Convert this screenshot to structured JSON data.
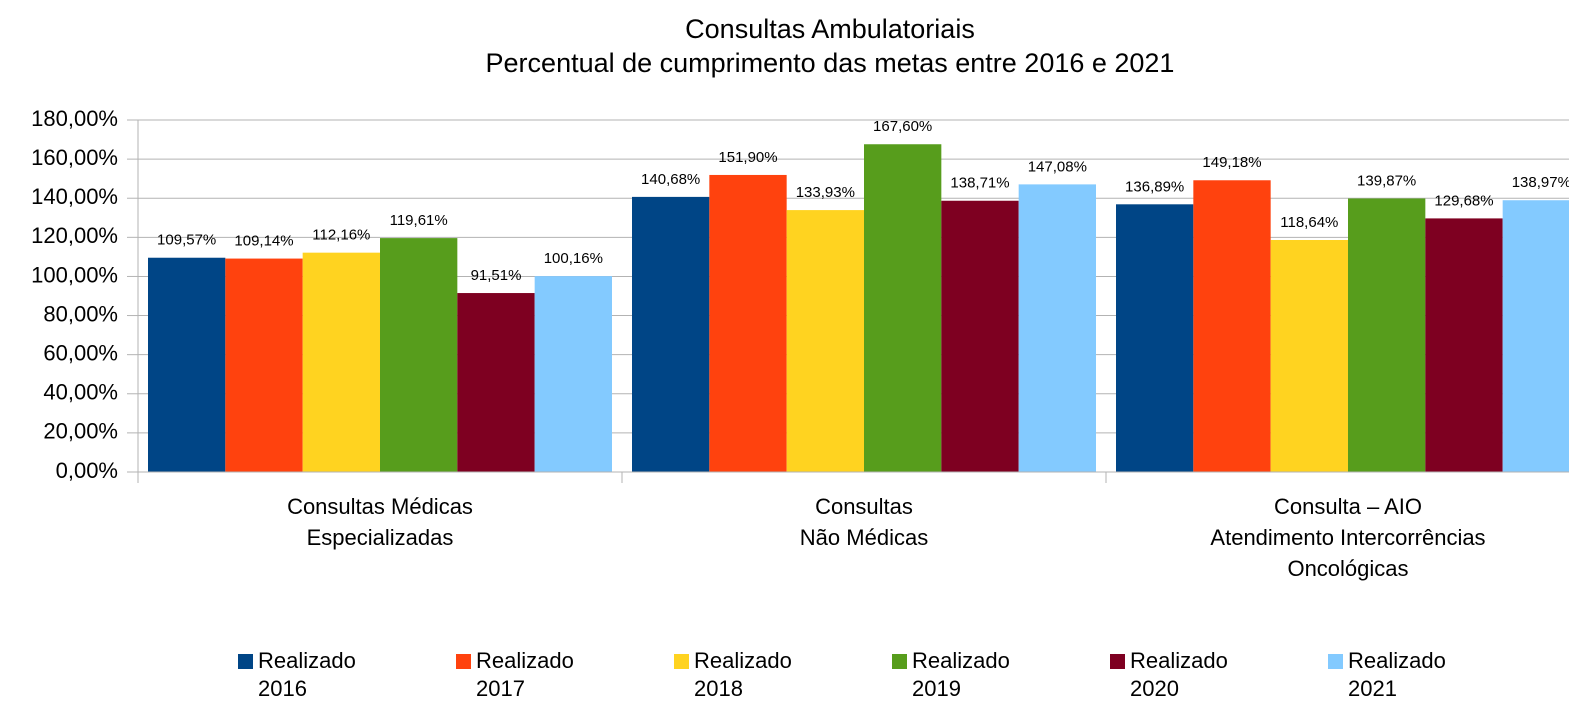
{
  "chart_data": {
    "type": "bar",
    "title": "Consultas Ambulatoriais",
    "subtitle": "Percentual de cumprimento das metas entre 2016 e 2021",
    "categories": [
      "Consultas Médicas\nEspecializadas",
      "Consultas\nNão Médicas",
      "Consulta – AIO\nAtendimento Intercorrências\nOncológicas"
    ],
    "series": [
      {
        "name": "Realizado 2016",
        "color": "#004586",
        "values": [
          109.57,
          140.68,
          136.89
        ],
        "value_labels": [
          "109,57%",
          "140,68%",
          "136,89%"
        ]
      },
      {
        "name": "Realizado 2017",
        "color": "#ff420e",
        "values": [
          109.14,
          151.9,
          149.18
        ],
        "value_labels": [
          "109,14%",
          "151,90%",
          "149,18%"
        ]
      },
      {
        "name": "Realizado 2018",
        "color": "#ffd320",
        "values": [
          112.16,
          133.93,
          118.64
        ],
        "value_labels": [
          "112,16%",
          "133,93%",
          "118,64%"
        ]
      },
      {
        "name": "Realizado 2019",
        "color": "#579d1c",
        "values": [
          119.61,
          167.6,
          139.87
        ],
        "value_labels": [
          "119,61%",
          "167,60%",
          "139,87%"
        ]
      },
      {
        "name": "Realizado 2020",
        "color": "#7e0021",
        "values": [
          91.51,
          138.71,
          129.68
        ],
        "value_labels": [
          "91,51%",
          "138,71%",
          "129,68%"
        ]
      },
      {
        "name": "Realizado 2021",
        "color": "#83caff",
        "values": [
          100.16,
          147.08,
          138.97
        ],
        "value_labels": [
          "100,16%",
          "147,08%",
          "138,97%"
        ]
      }
    ],
    "ylim": [
      0,
      180
    ],
    "yticks": [
      {
        "value": 0,
        "label": "0,00%"
      },
      {
        "value": 20,
        "label": "20,00%"
      },
      {
        "value": 40,
        "label": "40,00%"
      },
      {
        "value": 60,
        "label": "60,00%"
      },
      {
        "value": 80,
        "label": "80,00%"
      },
      {
        "value": 100,
        "label": "100,00%"
      },
      {
        "value": 120,
        "label": "120,00%"
      },
      {
        "value": 140,
        "label": "140,00%"
      },
      {
        "value": 160,
        "label": "160,00%"
      },
      {
        "value": 180,
        "label": "180,00%"
      }
    ],
    "grid": true,
    "legend": "bottom"
  }
}
